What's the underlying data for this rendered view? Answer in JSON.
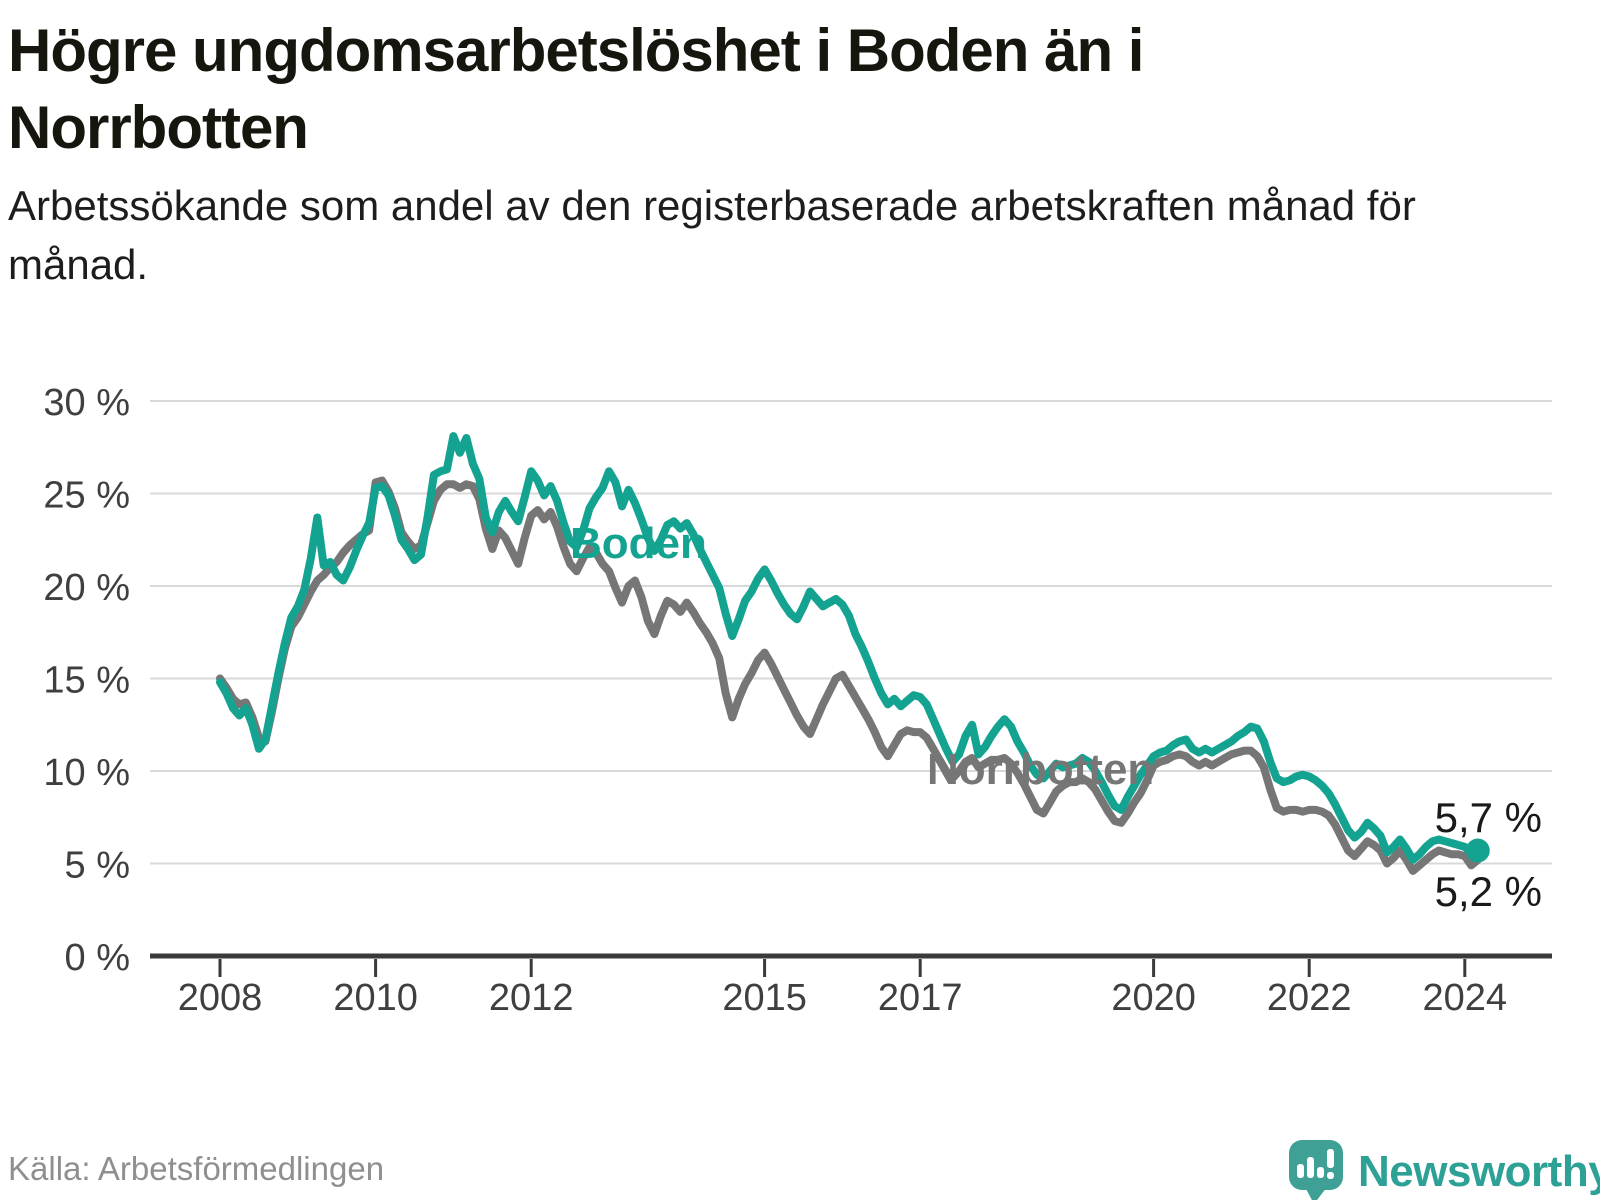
{
  "header": {
    "title": "Högre ungdomsarbetslöshet i Boden än i Norrbotten",
    "subtitle": "Arbetssökande som andel av den registerbaserade arbetskraften månad för månad."
  },
  "footer": {
    "source": "Källa: Arbetsförmedlingen",
    "brand": "Newsworthy"
  },
  "chart_data": {
    "type": "line",
    "unit": "%",
    "frequency": "monthly",
    "x_start": "2008-01",
    "x_end": "2024-03",
    "ylim": [
      0,
      30
    ],
    "grid": true,
    "legend_position": "inline-labels",
    "x_ticks": [
      {
        "year": 2008,
        "label": "2008"
      },
      {
        "year": 2010,
        "label": "2010"
      },
      {
        "year": 2012,
        "label": "2012"
      },
      {
        "year": 2015,
        "label": "2015"
      },
      {
        "year": 2017,
        "label": "2017"
      },
      {
        "year": 2020,
        "label": "2020"
      },
      {
        "year": 2022,
        "label": "2022"
      },
      {
        "year": 2024,
        "label": "2024"
      }
    ],
    "y_ticks": [
      {
        "value": 0,
        "label": "0 %"
      },
      {
        "value": 5,
        "label": "5 %"
      },
      {
        "value": 10,
        "label": "10 %"
      },
      {
        "value": 15,
        "label": "15 %"
      },
      {
        "value": 20,
        "label": "20 %"
      },
      {
        "value": 25,
        "label": "25 %"
      },
      {
        "value": 30,
        "label": "30 %"
      }
    ],
    "series": [
      {
        "name": "Norrbotten",
        "color": "#767676",
        "values": [
          15.0,
          14.5,
          13.9,
          13.6,
          13.7,
          12.9,
          11.8,
          11.6,
          13.2,
          15.0,
          16.6,
          17.8,
          18.3,
          19.0,
          19.7,
          20.3,
          20.6,
          21.0,
          21.3,
          21.8,
          22.2,
          22.5,
          22.8,
          23.0,
          25.6,
          25.7,
          25.1,
          24.2,
          22.9,
          22.4,
          22.0,
          22.2,
          23.4,
          24.6,
          25.2,
          25.5,
          25.5,
          25.3,
          25.5,
          25.4,
          24.7,
          23.1,
          22.0,
          23.0,
          22.6,
          21.9,
          21.2,
          22.6,
          23.8,
          24.1,
          23.6,
          24.0,
          23.2,
          22.1,
          21.2,
          20.8,
          21.5,
          22.1,
          21.8,
          21.2,
          20.8,
          19.9,
          19.1,
          20.0,
          20.3,
          19.4,
          18.1,
          17.4,
          18.4,
          19.2,
          19.0,
          18.6,
          19.1,
          18.6,
          18.0,
          17.5,
          16.9,
          16.1,
          14.2,
          12.9,
          13.9,
          14.7,
          15.3,
          16.0,
          16.4,
          15.8,
          15.1,
          14.4,
          13.7,
          13.0,
          12.4,
          12.0,
          12.8,
          13.6,
          14.3,
          15.0,
          15.2,
          14.6,
          14.0,
          13.4,
          12.8,
          12.1,
          11.3,
          10.8,
          11.4,
          12.0,
          12.2,
          12.1,
          12.1,
          11.8,
          11.2,
          10.6,
          10.0,
          9.6,
          10.0,
          10.5,
          10.7,
          10.2,
          10.4,
          10.6,
          10.6,
          10.7,
          10.4,
          9.9,
          9.3,
          8.6,
          7.9,
          7.7,
          8.3,
          8.9,
          9.2,
          9.4,
          9.4,
          9.6,
          9.4,
          9.0,
          8.4,
          7.8,
          7.3,
          7.2,
          7.7,
          8.3,
          8.8,
          9.5,
          10.3,
          10.5,
          10.6,
          10.8,
          10.9,
          10.8,
          10.5,
          10.3,
          10.5,
          10.3,
          10.5,
          10.7,
          10.9,
          11.0,
          11.1,
          11.1,
          10.8,
          10.2,
          9.0,
          8.0,
          7.8,
          7.9,
          7.9,
          7.8,
          7.9,
          7.9,
          7.8,
          7.6,
          7.1,
          6.4,
          5.7,
          5.4,
          5.8,
          6.2,
          6.0,
          5.7,
          5.0,
          5.3,
          5.7,
          5.2,
          4.6,
          4.9,
          5.2,
          5.5,
          5.7,
          5.6,
          5.5,
          5.5,
          5.4,
          4.9,
          5.2
        ]
      },
      {
        "name": "Boden",
        "color": "#14a390",
        "values": [
          14.8,
          14.2,
          13.4,
          13.0,
          13.4,
          12.5,
          11.2,
          11.7,
          13.5,
          15.3,
          16.9,
          18.3,
          18.9,
          19.8,
          21.5,
          23.7,
          21.1,
          21.3,
          20.6,
          20.3,
          21.0,
          21.9,
          22.7,
          23.4,
          25.3,
          25.4,
          24.9,
          23.8,
          22.5,
          22.0,
          21.4,
          21.7,
          23.7,
          26.0,
          26.2,
          26.3,
          28.1,
          27.2,
          28.0,
          26.6,
          25.8,
          23.7,
          22.9,
          24.0,
          24.6,
          24.0,
          23.5,
          24.8,
          26.2,
          25.7,
          24.9,
          25.4,
          24.6,
          23.4,
          22.4,
          22.1,
          23.0,
          24.2,
          24.8,
          25.3,
          26.2,
          25.6,
          24.3,
          25.2,
          24.5,
          23.6,
          22.6,
          21.9,
          22.5,
          23.3,
          23.5,
          23.1,
          23.4,
          22.8,
          22.0,
          21.3,
          20.6,
          19.9,
          18.5,
          17.3,
          18.2,
          19.2,
          19.7,
          20.4,
          20.9,
          20.3,
          19.6,
          19.0,
          18.5,
          18.2,
          18.9,
          19.7,
          19.3,
          18.9,
          19.1,
          19.3,
          19.0,
          18.4,
          17.4,
          16.7,
          15.9,
          15.0,
          14.2,
          13.6,
          13.9,
          13.5,
          13.8,
          14.1,
          14.0,
          13.6,
          12.8,
          12.0,
          11.2,
          10.5,
          10.9,
          11.9,
          12.5,
          10.9,
          11.3,
          11.9,
          12.4,
          12.8,
          12.4,
          11.6,
          11.0,
          10.3,
          9.8,
          9.6,
          10.0,
          10.4,
          10.2,
          10.3,
          10.4,
          10.7,
          10.5,
          10.0,
          9.4,
          8.7,
          8.1,
          7.9,
          8.6,
          9.2,
          9.8,
          10.3,
          10.8,
          11.0,
          11.1,
          11.4,
          11.6,
          11.7,
          11.2,
          11.0,
          11.2,
          11.0,
          11.2,
          11.4,
          11.6,
          11.9,
          12.1,
          12.4,
          12.3,
          11.6,
          10.5,
          9.6,
          9.4,
          9.5,
          9.7,
          9.8,
          9.7,
          9.5,
          9.2,
          8.8,
          8.2,
          7.5,
          6.8,
          6.4,
          6.7,
          7.2,
          6.9,
          6.5,
          5.6,
          5.9,
          6.3,
          5.8,
          5.2,
          5.5,
          5.9,
          6.2,
          6.3,
          6.2,
          6.1,
          6.0,
          5.9,
          5.6,
          5.7
        ]
      }
    ],
    "inline_labels": [
      {
        "series": "Boden",
        "text": "Boden"
      },
      {
        "series": "Norrbotten",
        "text": "Norrbotten"
      }
    ],
    "end_labels": [
      {
        "series": "Boden",
        "label": "5,7 %"
      },
      {
        "series": "Norrbotten",
        "label": "5,2 %"
      }
    ],
    "colors": {
      "boden": "#14a390",
      "norrbotten": "#767676",
      "axis": "#3a3a3a",
      "gridline": "#d9d9d9",
      "tick_label": "#3f3f3f",
      "brand_teal": "#2da196"
    }
  }
}
